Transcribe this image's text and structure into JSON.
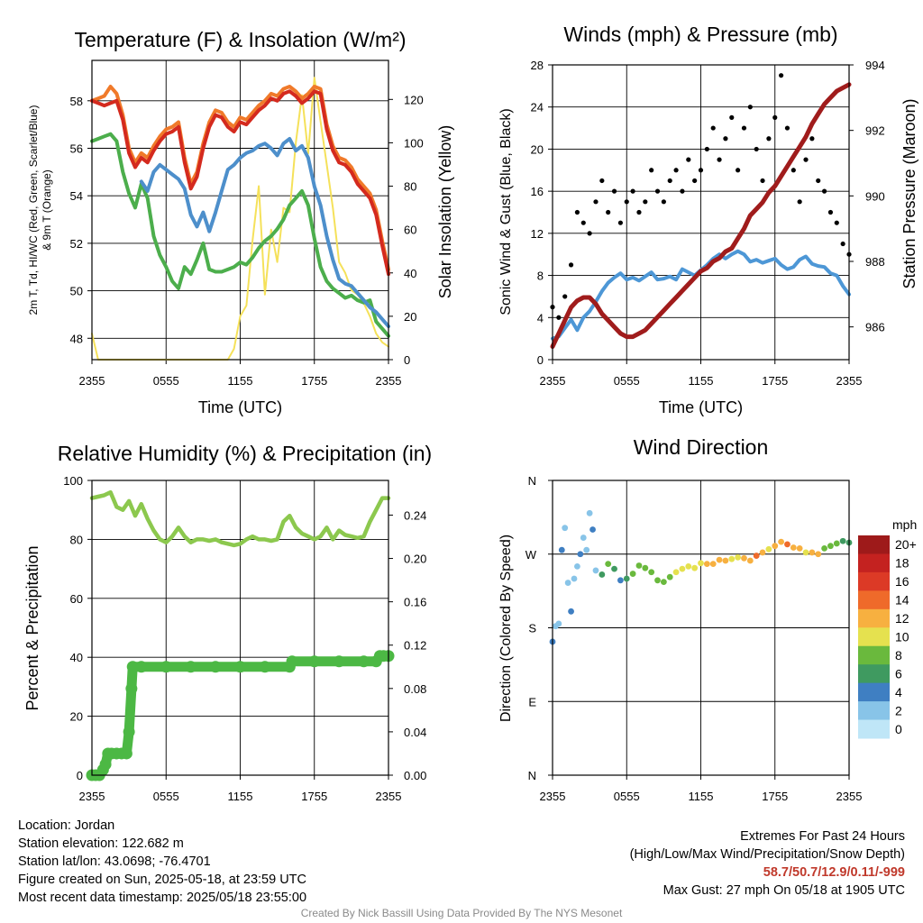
{
  "colors": {
    "temperature": "#d42a1e",
    "heat_index": "#f07a2a",
    "dewpoint": "#4cae4c",
    "wind_chill": "#4d8fcb",
    "insolation": "#f5e15a",
    "sonic_wind": "#4d97d6",
    "gust": "#000000",
    "pressure": "#a01c1c",
    "rh": "#8cc84e",
    "precip": "#4cb844"
  },
  "footer": {
    "location": "Location: Jordan",
    "elevation": "Station elevation: 122.682 m",
    "latlon": "Station lat/lon: 43.0698; -76.4701",
    "created": "Figure created on Sun, 2025-05-18, at 23:59 UTC",
    "recent": "Most recent data timestamp: 2025/05/18 23:55:00",
    "extremes_title": "Extremes For Past 24 Hours",
    "extremes_sub": "(High/Low/Max Wind/Precipitation/Snow Depth)",
    "extremes_values": "58.7/50.7/12.9/0.11/-999",
    "max_gust": "Max Gust: 27 mph On 05/18 at 1905 UTC",
    "credit": "Created By Nick Bassill Using Data Provided By The NYS Mesonet"
  },
  "chart_data": [
    {
      "type": "line",
      "title": "Temperature (F) & Insolation (W/m²)",
      "xlabel": "Time (UTC)",
      "ylabel_left_lines": [
        "2m T, Td, HI/WC (Red, Green, Scarlet/Blue)",
        "& 9m T (Orange)"
      ],
      "ylabel_right": "Solar Insolation (Yellow)",
      "x_ticks": [
        "2355",
        "0555",
        "1155",
        "1755",
        "2355"
      ],
      "ylim": [
        47.1,
        59.7
      ],
      "y_ticks": [
        48,
        50,
        52,
        54,
        56,
        58
      ],
      "y2lim": [
        0,
        138
      ],
      "y2_ticks": [
        0,
        20,
        40,
        60,
        80,
        100,
        120
      ],
      "x": [
        0,
        0.5,
        1,
        1.5,
        2,
        2.5,
        3,
        3.5,
        4,
        4.5,
        5,
        5.5,
        6,
        6.5,
        7,
        7.5,
        8,
        8.5,
        9,
        9.5,
        10,
        10.5,
        11,
        11.5,
        12,
        12.5,
        13,
        13.5,
        14,
        14.5,
        15,
        15.5,
        16,
        16.5,
        17,
        17.5,
        18,
        18.5,
        19,
        19.5,
        20,
        20.5,
        21,
        21.5,
        22,
        22.5,
        23,
        23.5,
        24
      ],
      "series": [
        {
          "key": "temperature",
          "values": [
            58.0,
            57.9,
            57.8,
            57.9,
            58.0,
            57.2,
            55.8,
            55.2,
            55.6,
            55.4,
            55.9,
            56.3,
            56.6,
            56.7,
            56.9,
            55.4,
            54.3,
            54.8,
            56.0,
            56.9,
            57.4,
            57.3,
            56.9,
            56.7,
            57.1,
            57.0,
            57.3,
            57.6,
            57.8,
            58.1,
            58.0,
            58.3,
            58.4,
            58.2,
            57.9,
            58.1,
            58.4,
            58.3,
            56.8,
            55.9,
            55.4,
            55.3,
            55.0,
            54.5,
            54.2,
            53.9,
            53.2,
            51.9,
            50.7
          ]
        },
        {
          "key": "heat_index",
          "values": [
            58.0,
            58.1,
            58.2,
            58.6,
            58.3,
            57.4,
            56.0,
            55.4,
            55.8,
            55.6,
            56.1,
            56.5,
            56.8,
            56.9,
            57.1,
            55.6,
            54.5,
            55.0,
            56.2,
            57.1,
            57.6,
            57.5,
            57.1,
            56.9,
            57.3,
            57.2,
            57.5,
            57.8,
            58.0,
            58.3,
            58.2,
            58.5,
            58.6,
            58.4,
            58.1,
            58.3,
            58.6,
            58.5,
            57.0,
            56.1,
            55.6,
            55.5,
            55.2,
            54.7,
            54.4,
            54.1,
            53.4,
            52.1,
            50.9
          ]
        },
        {
          "key": "dewpoint",
          "values": [
            56.3,
            56.4,
            56.5,
            56.6,
            56.3,
            55.0,
            54.1,
            53.5,
            54.5,
            53.9,
            52.3,
            51.5,
            51.0,
            50.4,
            50.1,
            51.0,
            50.7,
            51.3,
            52.0,
            50.9,
            50.8,
            50.8,
            50.9,
            51.0,
            51.2,
            51.1,
            51.4,
            51.8,
            52.1,
            52.3,
            52.6,
            53.0,
            53.6,
            53.9,
            54.2,
            53.6,
            52.2,
            51.0,
            50.4,
            50.1,
            49.9,
            49.7,
            49.8,
            49.6,
            49.5,
            49.6,
            48.7,
            48.4,
            48.1
          ]
        },
        {
          "key": "wind_chill",
          "values": [
            null,
            null,
            null,
            null,
            null,
            null,
            null,
            null,
            54.6,
            54.2,
            55.0,
            55.3,
            55.1,
            54.9,
            54.7,
            54.3,
            53.2,
            52.7,
            53.3,
            52.5,
            53.3,
            54.2,
            55.1,
            55.3,
            55.6,
            55.8,
            55.9,
            56.1,
            56.2,
            56.0,
            55.7,
            56.2,
            56.4,
            55.9,
            56.1,
            55.6,
            54.4,
            53.6,
            52.3,
            51.3,
            50.5,
            50.3,
            50.2,
            49.9,
            49.6,
            49.3,
            49.1,
            48.8,
            48.5
          ]
        },
        {
          "key": "insolation",
          "axis": "y2",
          "values": [
            12,
            0,
            0,
            0,
            0,
            0,
            0,
            0,
            0,
            0,
            0,
            0,
            0,
            0,
            0,
            0,
            0,
            0,
            0,
            0,
            0,
            0,
            0,
            5,
            20,
            25,
            55,
            80,
            30,
            60,
            45,
            70,
            68,
            100,
            122,
            95,
            130,
            110,
            90,
            70,
            45,
            40,
            32,
            30,
            26,
            20,
            12,
            8,
            6
          ]
        }
      ]
    },
    {
      "type": "line",
      "title": "Winds (mph) & Pressure (mb)",
      "xlabel": "Time (UTC)",
      "ylabel_left": "Sonic Wind & Gust (Blue, Black)",
      "ylabel_right": "Station Pressure (Maroon)",
      "x_ticks": [
        "2355",
        "0555",
        "1155",
        "1755",
        "2355"
      ],
      "ylim": [
        0,
        28
      ],
      "y_ticks": [
        0,
        4,
        8,
        12,
        16,
        20,
        24,
        28
      ],
      "y2lim": [
        985.0,
        994.0
      ],
      "y2_ticks": [
        986,
        988,
        990,
        992,
        994
      ],
      "x": [
        0,
        0.5,
        1,
        1.5,
        2,
        2.5,
        3,
        3.5,
        4,
        4.5,
        5,
        5.5,
        6,
        6.5,
        7,
        7.5,
        8,
        8.5,
        9,
        9.5,
        10,
        10.5,
        11,
        11.5,
        12,
        12.5,
        13,
        13.5,
        14,
        14.5,
        15,
        15.5,
        16,
        16.5,
        17,
        17.5,
        18,
        18.5,
        19,
        19.5,
        20,
        20.5,
        21,
        21.5,
        22,
        22.5,
        23,
        23.5,
        24
      ],
      "series": [
        {
          "key": "sonic_wind",
          "values": [
            2.0,
            2.2,
            3.0,
            3.8,
            2.8,
            4.0,
            4.6,
            5.5,
            6.5,
            7.3,
            7.8,
            8.2,
            7.6,
            7.8,
            7.5,
            7.9,
            8.3,
            7.6,
            7.7,
            7.9,
            7.6,
            8.6,
            8.3,
            8.0,
            8.5,
            9.0,
            9.6,
            10.0,
            9.6,
            10.0,
            10.3,
            10.0,
            9.3,
            9.5,
            9.2,
            9.4,
            9.6,
            9.0,
            8.6,
            8.8,
            9.5,
            9.8,
            9.1,
            8.9,
            8.8,
            8.2,
            8.0,
            7.0,
            6.2
          ]
        },
        {
          "key": "pressure",
          "axis": "y2",
          "values": [
            985.4,
            985.8,
            986.2,
            986.6,
            986.8,
            986.9,
            986.9,
            986.7,
            986.4,
            986.2,
            986.0,
            985.8,
            985.7,
            985.7,
            985.8,
            985.9,
            986.1,
            986.3,
            986.5,
            986.7,
            986.9,
            987.1,
            987.3,
            987.5,
            987.7,
            987.8,
            988.0,
            988.1,
            988.3,
            988.4,
            988.7,
            989.0,
            989.4,
            989.6,
            989.8,
            990.1,
            990.3,
            990.6,
            990.9,
            991.2,
            991.5,
            991.8,
            992.2,
            992.5,
            992.8,
            993.0,
            993.2,
            993.3,
            993.4
          ]
        },
        {
          "key": "gust",
          "marker": "dot",
          "values": [
            5,
            4,
            6,
            9,
            14,
            13,
            12,
            15,
            17,
            14,
            16,
            13,
            15,
            16,
            14,
            15,
            18,
            16,
            15,
            17,
            18,
            16,
            19,
            17,
            18,
            20,
            22,
            19,
            21,
            23,
            18,
            22,
            24,
            20,
            17,
            21,
            23,
            27,
            22,
            18,
            15,
            19,
            21,
            17,
            16,
            14,
            13,
            11,
            10
          ]
        }
      ]
    },
    {
      "type": "line",
      "title": "Relative Humidity (%) & Precipitation (in)",
      "ylabel_left": "Percent & Precipitation",
      "x_ticks": [
        "2355",
        "0555",
        "1155",
        "1755",
        "2355"
      ],
      "ylim": [
        0,
        100
      ],
      "y_ticks": [
        0,
        20,
        40,
        60,
        80,
        100
      ],
      "y2lim": [
        0,
        0.272
      ],
      "y2_ticks": [
        "0.00",
        "0.04",
        "0.08",
        "0.12",
        "0.16",
        "0.20",
        "0.24"
      ],
      "x": [
        0,
        0.5,
        1,
        1.5,
        2,
        2.5,
        3,
        3.5,
        4,
        4.5,
        5,
        5.5,
        6,
        6.5,
        7,
        7.5,
        8,
        8.5,
        9,
        9.5,
        10,
        10.5,
        11,
        11.5,
        12,
        12.5,
        13,
        13.5,
        14,
        14.5,
        15,
        15.5,
        16,
        16.5,
        17,
        17.5,
        18,
        18.5,
        19,
        19.5,
        20,
        20.5,
        21,
        21.5,
        22,
        22.5,
        23,
        23.5,
        24
      ],
      "series": [
        {
          "key": "rh",
          "values": [
            94,
            94.5,
            95,
            96,
            91,
            90,
            93,
            88,
            92,
            87,
            83,
            80,
            79,
            81,
            84,
            81,
            79,
            80,
            80,
            79.5,
            80,
            79,
            78.5,
            78,
            78.5,
            80,
            81,
            80,
            80,
            79.5,
            80,
            86,
            88,
            84,
            82,
            81,
            80,
            81,
            84,
            80,
            83,
            81.5,
            81,
            80.5,
            81,
            86,
            90,
            94,
            94
          ]
        },
        {
          "key": "precip",
          "axis": "y2",
          "marker": "dot",
          "x": [
            0,
            0.3,
            0.6,
            0.9,
            1.1,
            1.3,
            1.6,
            2.0,
            2.4,
            2.8,
            3.0,
            3.2,
            3.3,
            4.0,
            6.0,
            8.0,
            10.0,
            12.0,
            14.0,
            16.0,
            16.2,
            18.0,
            20.0,
            22.0,
            23.0,
            23.3,
            23.6,
            24.0
          ],
          "values": [
            0.0,
            0.0,
            0.0,
            0.005,
            0.01,
            0.02,
            0.02,
            0.02,
            0.02,
            0.02,
            0.04,
            0.08,
            0.1,
            0.1,
            0.1,
            0.1,
            0.1,
            0.1,
            0.1,
            0.1,
            0.105,
            0.105,
            0.105,
            0.105,
            0.105,
            0.11,
            0.11,
            0.11
          ]
        }
      ]
    },
    {
      "type": "scatter",
      "title": "Wind Direction",
      "ylabel_left": "Direction (Colored By Speed)",
      "x_ticks": [
        "2355",
        "0555",
        "1155",
        "1755",
        "2355"
      ],
      "ylim": [
        0,
        360
      ],
      "y_ticks": [
        "N",
        "E",
        "S",
        "W",
        "N"
      ],
      "y_tick_values": [
        0,
        90,
        180,
        270,
        360
      ],
      "colorbar": {
        "unit": "mph",
        "labels": [
          "0",
          "2",
          "4",
          "6",
          "8",
          "10",
          "12",
          "14",
          "16",
          "18",
          "20+"
        ],
        "colors": [
          "#bfe6f7",
          "#88c4e8",
          "#3f7fc2",
          "#3f9a60",
          "#6ab93d",
          "#e5e14f",
          "#f7b040",
          "#ef6a2a",
          "#dc3a26",
          "#c42220",
          "#9e1a1a"
        ]
      },
      "x": [
        0,
        0.25,
        0.5,
        0.75,
        1,
        1.25,
        1.5,
        1.75,
        2,
        2.25,
        2.5,
        2.75,
        3,
        3.25,
        3.5,
        4,
        4.5,
        5,
        5.5,
        6,
        6.5,
        7,
        7.5,
        8,
        8.5,
        9,
        9.5,
        10,
        10.5,
        11,
        11.5,
        12,
        12.5,
        13,
        13.5,
        14,
        14.5,
        15,
        15.5,
        16,
        16.5,
        17,
        17.5,
        18,
        18.5,
        19,
        19.5,
        20,
        20.5,
        21,
        21.5,
        22,
        22.5,
        23,
        23.5,
        24
      ],
      "values": [
        163,
        182,
        185,
        275,
        302,
        235,
        200,
        240,
        255,
        270,
        290,
        275,
        320,
        300,
        250,
        245,
        258,
        252,
        238,
        240,
        246,
        256,
        253,
        248,
        238,
        236,
        242,
        248,
        252,
        255,
        253,
        259,
        258,
        258,
        263,
        262,
        264,
        266,
        265,
        262,
        268,
        272,
        276,
        280,
        285,
        282,
        278,
        277,
        272,
        272,
        270,
        277,
        280,
        283,
        286,
        284
      ],
      "speed": [
        3,
        2,
        1,
        4,
        2,
        1,
        3,
        2,
        1,
        4,
        2,
        1,
        2,
        3,
        2,
        5,
        8,
        5,
        4,
        5,
        7,
        8,
        7,
        8,
        8,
        8,
        8,
        9,
        9,
        10,
        10,
        10,
        11,
        12,
        12,
        11,
        10,
        10,
        11,
        11,
        13,
        12,
        10,
        11,
        12,
        14,
        11,
        12,
        10,
        11,
        12,
        8,
        7,
        8,
        5,
        6
      ]
    }
  ]
}
